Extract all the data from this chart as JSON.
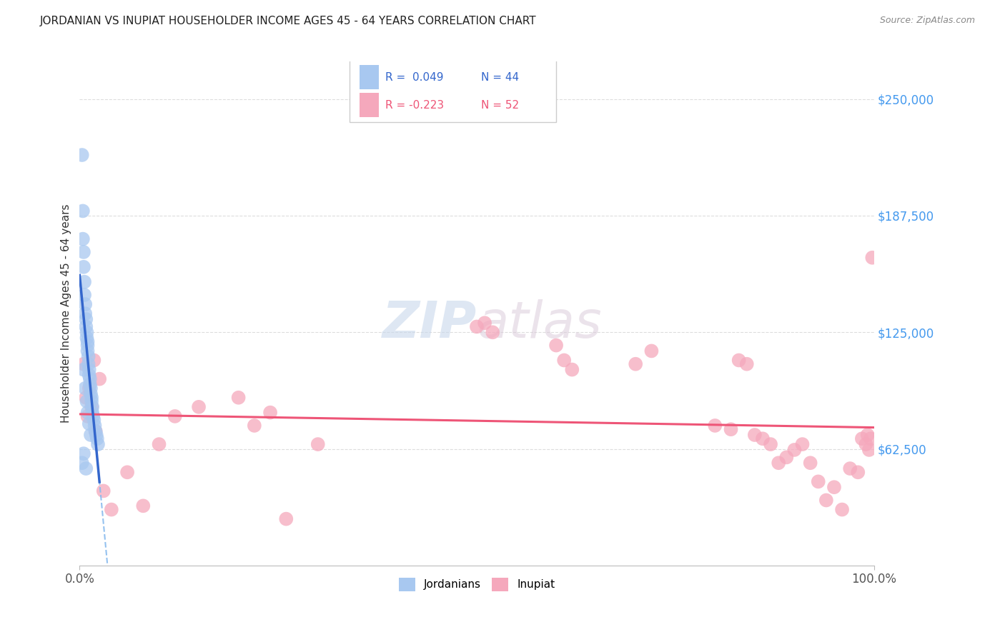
{
  "title": "JORDANIAN VS INUPIAT HOUSEHOLDER INCOME AGES 45 - 64 YEARS CORRELATION CHART",
  "source": "Source: ZipAtlas.com",
  "ylabel": "Householder Income Ages 45 - 64 years",
  "xlim": [
    0.0,
    1.0
  ],
  "ylim": [
    0,
    270000
  ],
  "yticks": [
    62500,
    125000,
    187500,
    250000
  ],
  "ytick_labels": [
    "$62,500",
    "$125,000",
    "$187,500",
    "$250,000"
  ],
  "xtick_labels": [
    "0.0%",
    "100.0%"
  ],
  "jordan_color": "#A8C8F0",
  "inupiat_color": "#F5A8BC",
  "jordan_line_color": "#3366CC",
  "inupiat_line_color": "#EE5577",
  "jordan_dash_color": "#88BBEE",
  "background_color": "#FFFFFF",
  "grid_color": "#DDDDDD",
  "jordan_x": [
    0.003,
    0.004,
    0.004,
    0.005,
    0.005,
    0.006,
    0.006,
    0.007,
    0.007,
    0.008,
    0.008,
    0.009,
    0.009,
    0.01,
    0.01,
    0.01,
    0.011,
    0.011,
    0.012,
    0.012,
    0.013,
    0.013,
    0.014,
    0.014,
    0.015,
    0.015,
    0.016,
    0.016,
    0.017,
    0.018,
    0.019,
    0.02,
    0.021,
    0.022,
    0.023,
    0.005,
    0.007,
    0.009,
    0.01,
    0.012,
    0.014,
    0.003,
    0.005,
    0.008
  ],
  "jordan_y": [
    220000,
    190000,
    175000,
    168000,
    160000,
    152000,
    145000,
    140000,
    135000,
    132000,
    128000,
    125000,
    122000,
    120000,
    118000,
    115000,
    112000,
    108000,
    105000,
    102000,
    100000,
    97000,
    95000,
    92000,
    90000,
    88000,
    85000,
    82000,
    80000,
    78000,
    75000,
    72000,
    70000,
    68000,
    65000,
    105000,
    95000,
    88000,
    82000,
    76000,
    70000,
    55000,
    60000,
    52000
  ],
  "inupiat_x": [
    0.005,
    0.008,
    0.01,
    0.012,
    0.015,
    0.018,
    0.02,
    0.025,
    0.03,
    0.04,
    0.06,
    0.08,
    0.1,
    0.12,
    0.15,
    0.2,
    0.22,
    0.24,
    0.26,
    0.3,
    0.5,
    0.51,
    0.52,
    0.6,
    0.61,
    0.62,
    0.7,
    0.72,
    0.8,
    0.82,
    0.83,
    0.84,
    0.85,
    0.86,
    0.87,
    0.88,
    0.89,
    0.9,
    0.91,
    0.92,
    0.93,
    0.94,
    0.95,
    0.96,
    0.97,
    0.98,
    0.985,
    0.99,
    0.992,
    0.994,
    0.996,
    0.998
  ],
  "inupiat_y": [
    108000,
    90000,
    80000,
    95000,
    85000,
    110000,
    72000,
    100000,
    40000,
    30000,
    50000,
    32000,
    65000,
    80000,
    85000,
    90000,
    75000,
    82000,
    25000,
    65000,
    128000,
    130000,
    125000,
    118000,
    110000,
    105000,
    108000,
    115000,
    75000,
    73000,
    110000,
    108000,
    70000,
    68000,
    65000,
    55000,
    58000,
    62000,
    65000,
    55000,
    45000,
    35000,
    42000,
    30000,
    52000,
    50000,
    68000,
    65000,
    70000,
    62000,
    68000,
    165000
  ],
  "legend_r1": "R =  0.049",
  "legend_n1": "N = 44",
  "legend_r2": "R = -0.223",
  "legend_n2": "N = 52",
  "legend_r1_color": "#3366CC",
  "legend_r2_color": "#EE5577",
  "legend_n_color": "#3366CC"
}
